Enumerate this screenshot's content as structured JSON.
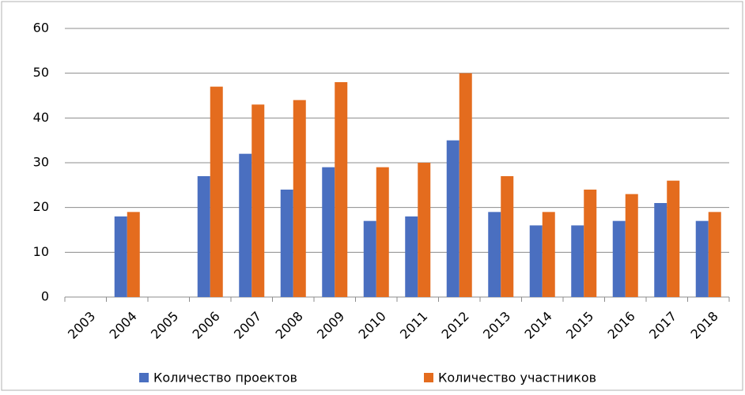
{
  "chart_data": {
    "type": "bar",
    "categories": [
      "2003",
      "2004",
      "2005",
      "2006",
      "2007",
      "2008",
      "2009",
      "2010",
      "2011",
      "2012",
      "2013",
      "2014",
      "2015",
      "2016",
      "2017",
      "2018"
    ],
    "series": [
      {
        "name": "Количество проектов",
        "color": "#4a6fc0",
        "values": [
          null,
          18,
          null,
          27,
          32,
          24,
          29,
          17,
          18,
          35,
          19,
          16,
          16,
          17,
          21,
          17
        ]
      },
      {
        "name": "Количество участников",
        "color": "#e46c1e",
        "values": [
          null,
          19,
          null,
          47,
          43,
          44,
          48,
          29,
          30,
          50,
          27,
          19,
          24,
          23,
          26,
          19
        ]
      }
    ],
    "ylim": [
      0,
      60
    ],
    "yticks": [
      0,
      10,
      20,
      30,
      40,
      50,
      60
    ],
    "grid": true,
    "legend": "bottom"
  }
}
